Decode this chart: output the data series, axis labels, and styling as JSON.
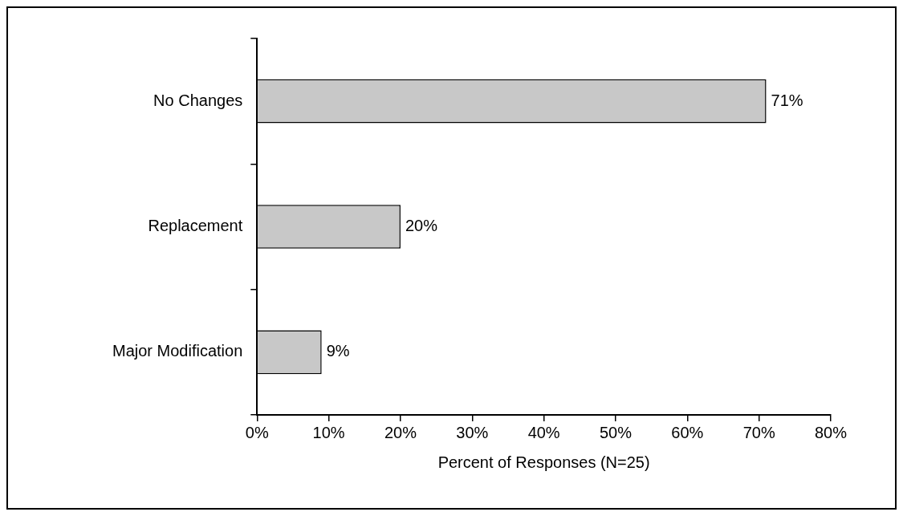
{
  "chart_data": {
    "type": "bar",
    "orientation": "horizontal",
    "xlabel": "Percent of Responses (N=25)",
    "categories": [
      "No Changes",
      "Replacement",
      "Major Modification"
    ],
    "values": [
      71,
      20,
      9
    ],
    "color": "#c8c8c8",
    "value_labels": [
      "71%",
      "20%",
      "9%"
    ],
    "xlim": [
      0,
      80
    ],
    "xticks": [
      {
        "value": 0,
        "label": "0%"
      },
      {
        "value": 10,
        "label": "10%"
      },
      {
        "value": 20,
        "label": "20%"
      },
      {
        "value": 30,
        "label": "30%"
      },
      {
        "value": 40,
        "label": "40%"
      },
      {
        "value": 50,
        "label": "50%"
      },
      {
        "value": 60,
        "label": "60%"
      },
      {
        "value": 70,
        "label": "70%"
      },
      {
        "value": 80,
        "label": "80%"
      }
    ],
    "grid": false,
    "legend": false
  }
}
